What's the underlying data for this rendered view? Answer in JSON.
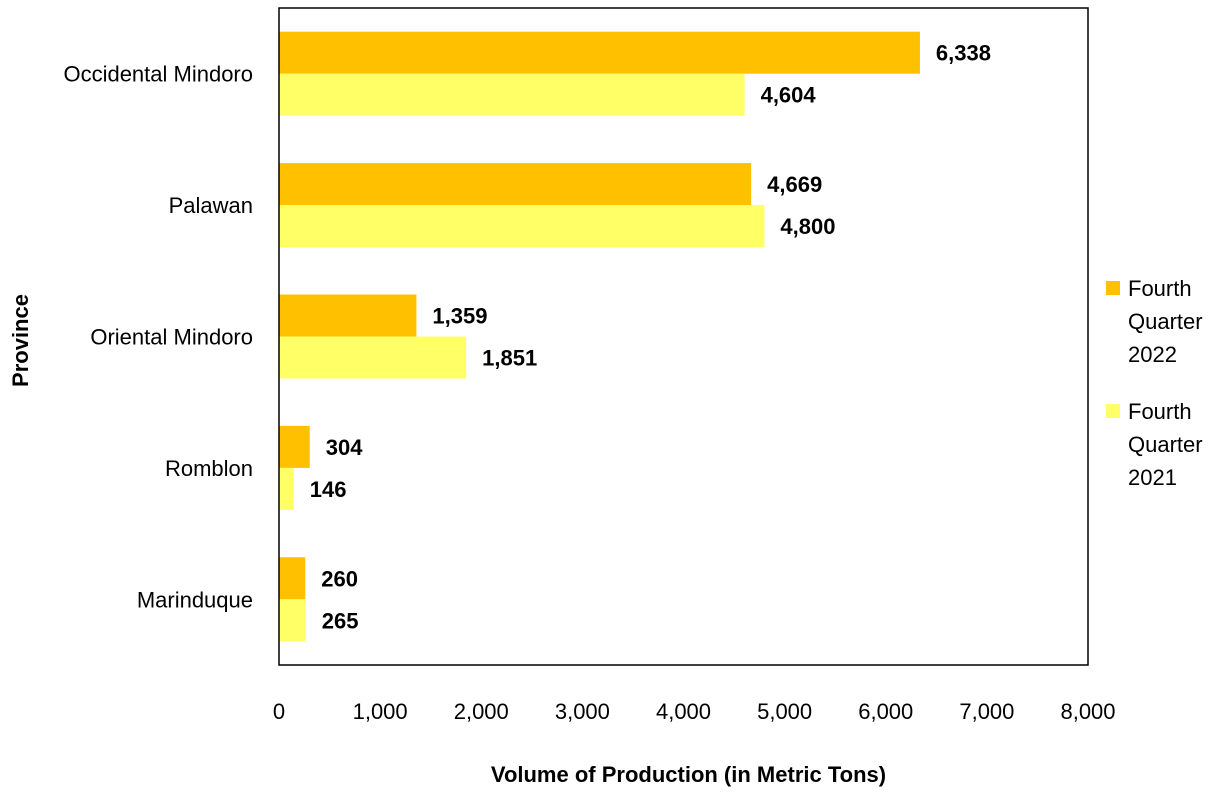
{
  "chart_data": {
    "type": "bar",
    "orientation": "horizontal",
    "title": "",
    "xlabel": "Volume of Production (in Metric Tons)",
    "ylabel": "Province",
    "categories": [
      "Occidental Mindoro",
      "Palawan",
      "Oriental Mindoro",
      "Romblon",
      "Marinduque"
    ],
    "series": [
      {
        "name": "Fourth Quarter 2022",
        "legend_lines": [
          "Fourth",
          "Quarter",
          "2022"
        ],
        "color": "#FFC000",
        "values": [
          6338,
          4669,
          1359,
          304,
          260
        ],
        "labels": [
          "6,338",
          "4,669",
          "1,359",
          "304",
          "260"
        ]
      },
      {
        "name": "Fourth Quarter 2021",
        "legend_lines": [
          "Fourth",
          "Quarter",
          "2021"
        ],
        "color": "#FFFF66",
        "values": [
          4604,
          4800,
          1851,
          146,
          265
        ],
        "labels": [
          "4,604",
          "4,800",
          "1,851",
          "146",
          "265"
        ]
      }
    ],
    "xlim": [
      0,
      8000
    ],
    "xticks": [
      0,
      1000,
      2000,
      3000,
      4000,
      5000,
      6000,
      7000,
      8000
    ],
    "xtick_labels": [
      "0",
      "1,000",
      "2,000",
      "3,000",
      "4,000",
      "5,000",
      "6,000",
      "7,000",
      "8,000"
    ],
    "grid": false,
    "legend_position": "right"
  }
}
